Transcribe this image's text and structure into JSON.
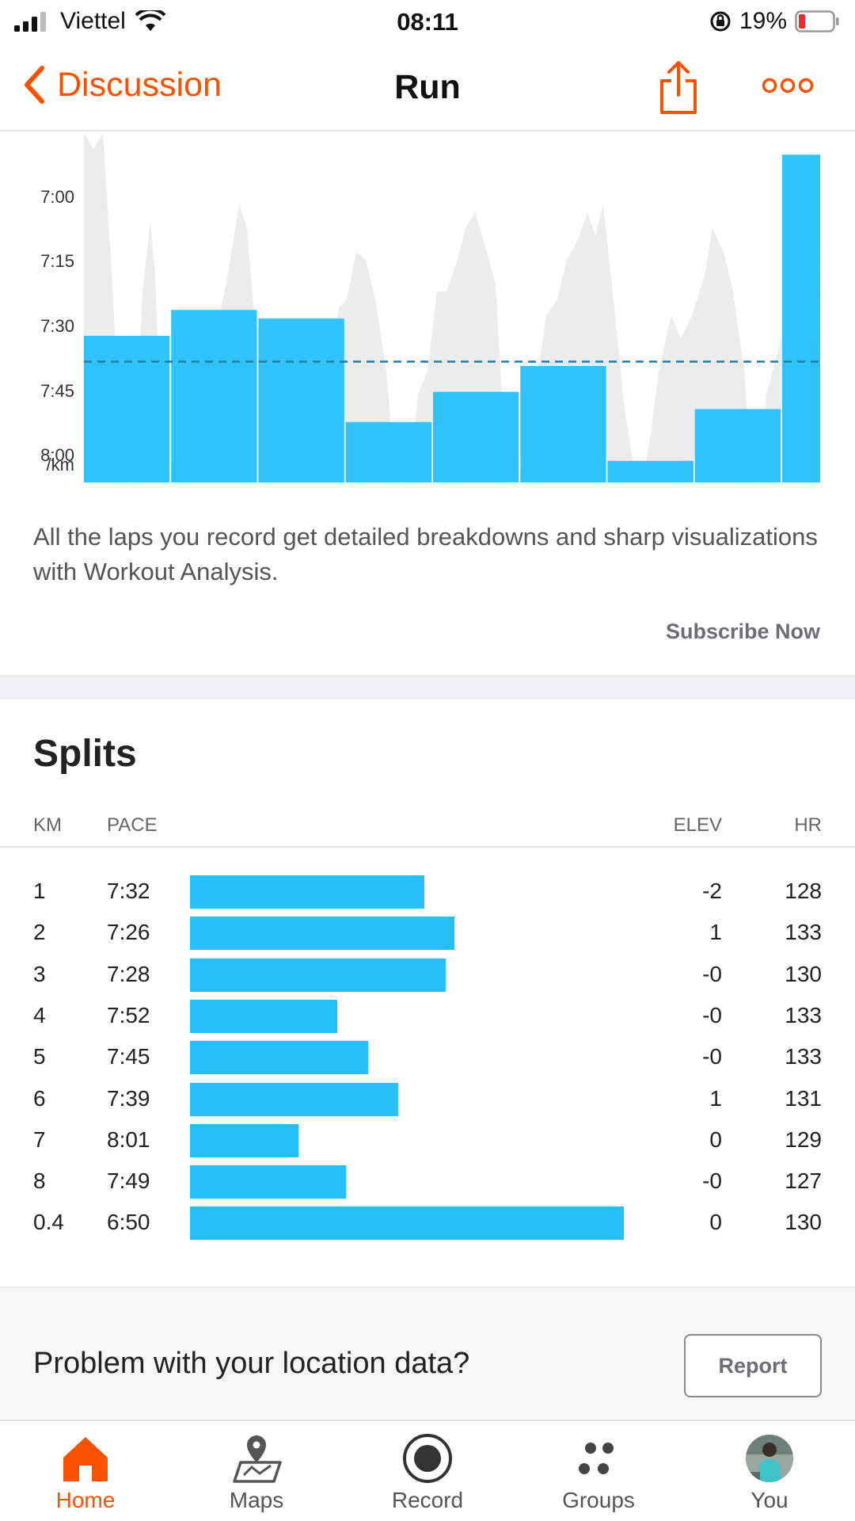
{
  "status_bar": {
    "carrier": "Viettel",
    "time": "08:11",
    "battery": "19%"
  },
  "nav": {
    "back_label": "Discussion",
    "title": "Run"
  },
  "chart_data": {
    "type": "bar",
    "ylabel": "/km",
    "y_ticks": [
      "7:00",
      "7:15",
      "7:30",
      "7:45",
      "8:00"
    ],
    "y_tick_seconds": [
      420,
      435,
      450,
      465,
      480
    ],
    "ylim_seconds": [
      486,
      405
    ],
    "average_seconds": 458,
    "laps": [
      {
        "pace": "7:32",
        "pace_seconds": 452
      },
      {
        "pace": "7:26",
        "pace_seconds": 446
      },
      {
        "pace": "7:28",
        "pace_seconds": 448
      },
      {
        "pace": "7:52",
        "pace_seconds": 472
      },
      {
        "pace": "7:45",
        "pace_seconds": 465
      },
      {
        "pace": "7:39",
        "pace_seconds": 459
      },
      {
        "pace": "8:01",
        "pace_seconds": 481
      },
      {
        "pace": "7:49",
        "pace_seconds": 469
      },
      {
        "pace": "6:50",
        "pace_seconds": 410
      }
    ],
    "bar_color": "#25c0fc",
    "background_trace_color": "#ececec",
    "average_line_color": "#1f7fa0",
    "grid": false
  },
  "description": "All the laps you record get detailed breakdowns and sharp visualizations with Workout Analysis.",
  "subscribe_label": "Subscribe Now",
  "splits": {
    "title": "Splits",
    "headers": {
      "km": "KM",
      "pace": "PACE",
      "elev": "ELEV",
      "hr": "HR"
    },
    "rows": [
      {
        "km": "1",
        "pace": "7:32",
        "pace_bar_fraction": 0.54,
        "elev": "-2",
        "hr": "128"
      },
      {
        "km": "2",
        "pace": "7:26",
        "pace_bar_fraction": 0.61,
        "elev": "1",
        "hr": "133"
      },
      {
        "km": "3",
        "pace": "7:28",
        "pace_bar_fraction": 0.59,
        "elev": "-0",
        "hr": "130"
      },
      {
        "km": "4",
        "pace": "7:52",
        "pace_bar_fraction": 0.34,
        "elev": "-0",
        "hr": "133"
      },
      {
        "km": "5",
        "pace": "7:45",
        "pace_bar_fraction": 0.41,
        "elev": "-0",
        "hr": "133"
      },
      {
        "km": "6",
        "pace": "7:39",
        "pace_bar_fraction": 0.48,
        "elev": "1",
        "hr": "131"
      },
      {
        "km": "7",
        "pace": "8:01",
        "pace_bar_fraction": 0.25,
        "elev": "0",
        "hr": "129"
      },
      {
        "km": "8",
        "pace": "7:49",
        "pace_bar_fraction": 0.36,
        "elev": "-0",
        "hr": "127"
      },
      {
        "km": "0.4",
        "pace": "6:50",
        "pace_bar_fraction": 1.0,
        "elev": "0",
        "hr": "130"
      }
    ]
  },
  "location": {
    "question": "Problem with your location data?",
    "report_label": "Report"
  },
  "tabs": [
    {
      "label": "Home",
      "icon": "home-icon",
      "active": true
    },
    {
      "label": "Maps",
      "icon": "maps-icon",
      "active": false
    },
    {
      "label": "Record",
      "icon": "record-icon",
      "active": false
    },
    {
      "label": "Groups",
      "icon": "groups-icon",
      "active": false
    },
    {
      "label": "You",
      "icon": "avatar-icon",
      "active": false
    }
  ],
  "colors": {
    "accent": "#fc5200",
    "bar": "#25c0fc",
    "muted": "#6d6d78"
  }
}
